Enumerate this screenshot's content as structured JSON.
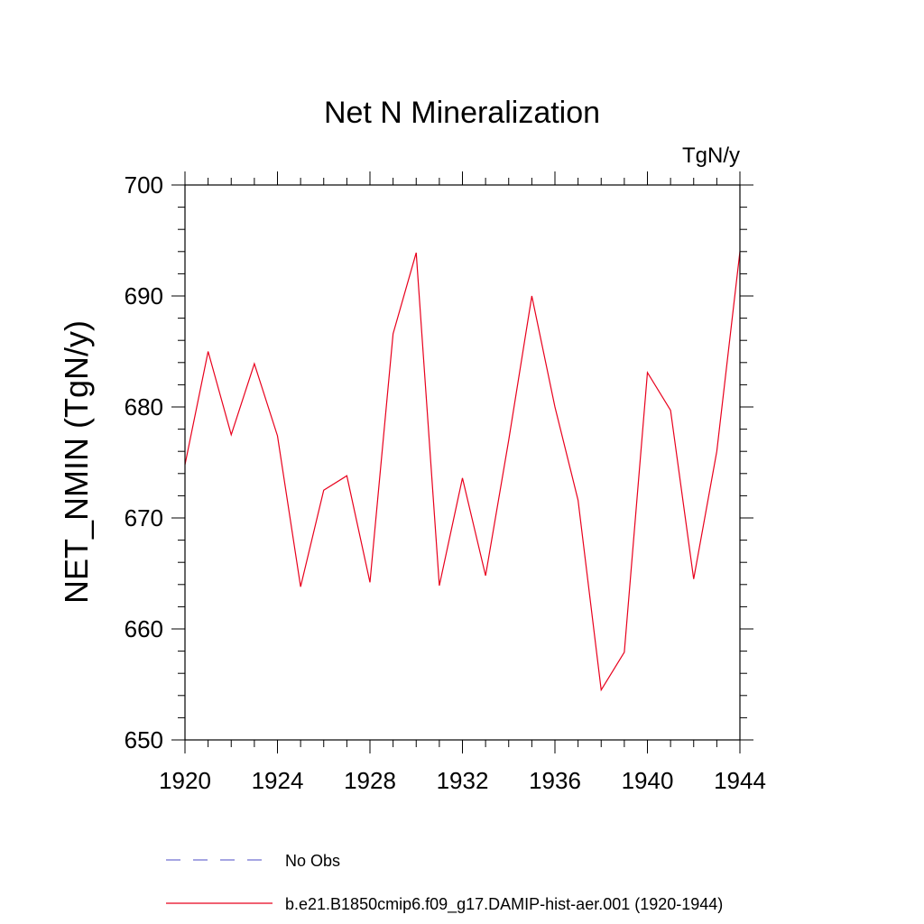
{
  "chart_data": {
    "type": "line",
    "title": "Net N Mineralization",
    "units_label": "TgN/y",
    "ylabel": "NET_NMIN  (TgN/y)",
    "xlabel": "",
    "xlim": [
      1920,
      1944
    ],
    "ylim": [
      650,
      700
    ],
    "x_ticks": [
      1920,
      1924,
      1928,
      1932,
      1936,
      1940,
      1944
    ],
    "y_ticks": [
      650,
      660,
      670,
      680,
      690,
      700
    ],
    "grid": false,
    "legend_position": "bottom",
    "series": [
      {
        "name": "b.e21.B1850cmip6.f09_g17.DAMIP-hist-aer.001 (1920-1944)",
        "color": "#e8001c",
        "style": "solid",
        "x": [
          1920,
          1921,
          1922,
          1923,
          1924,
          1925,
          1926,
          1927,
          1928,
          1929,
          1930,
          1931,
          1932,
          1933,
          1934,
          1935,
          1936,
          1937,
          1938,
          1939,
          1940,
          1941,
          1942,
          1943,
          1944
        ],
        "y": [
          674.8,
          685.0,
          677.5,
          683.9,
          677.4,
          663.8,
          672.5,
          673.8,
          664.2,
          686.6,
          693.9,
          663.9,
          673.6,
          664.8,
          677.0,
          690.0,
          680.0,
          671.6,
          654.5,
          657.9,
          683.1,
          679.7,
          664.5,
          676.0,
          694.0
        ]
      }
    ],
    "legend_entries": [
      {
        "label": "No Obs",
        "color": "#6f6fd0",
        "style": "dashed"
      },
      {
        "label": "b.e21.B1850cmip6.f09_g17.DAMIP-hist-aer.001 (1920-1944)",
        "color": "#e8001c",
        "style": "solid"
      }
    ]
  }
}
